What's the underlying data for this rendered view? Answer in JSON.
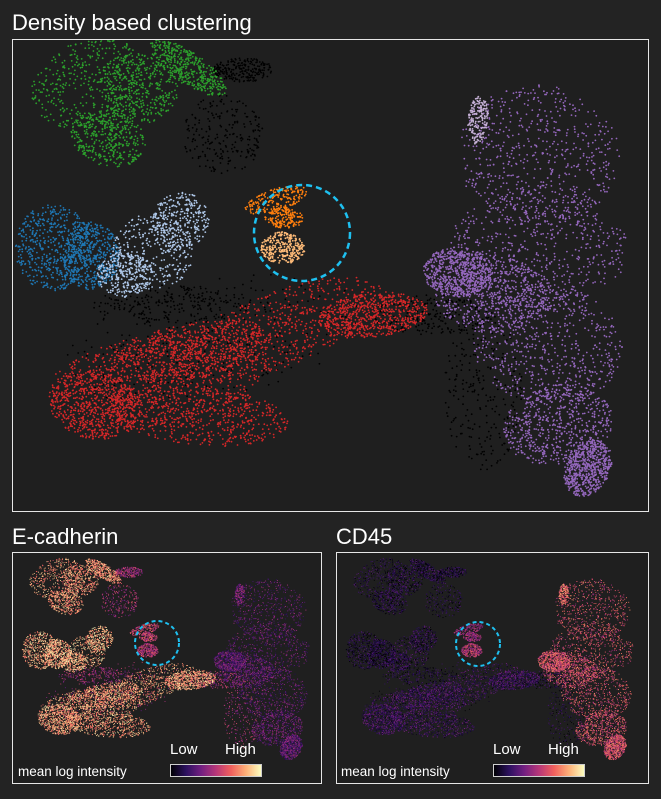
{
  "figure": {
    "panels": [
      {
        "id": "clusters",
        "title": "Density based clustering"
      },
      {
        "id": "ecad",
        "title": "E-cadherin"
      },
      {
        "id": "cd45",
        "title": "CD45"
      }
    ],
    "legend": {
      "caption": "mean log intensity",
      "low_label": "Low",
      "high_label": "High"
    }
  },
  "colors": {
    "background": "#232323",
    "frame": "#e6e6e6",
    "highlight_circle": "#1ec0f0",
    "unassigned": "#000000",
    "green": "#2ca02c",
    "blue": "#1f77b4",
    "light_blue": "#aec7e8",
    "orange": "#ff7f0e",
    "peach": "#ffbb78",
    "red": "#d62728",
    "purple": "#9467bd",
    "pale_lavender": "#c5b0d5"
  },
  "chart_data": [
    {
      "type": "scatter",
      "title": "Density based clustering",
      "xlabel": "",
      "ylabel": "",
      "axes": "hidden",
      "grid": false,
      "legend": "none",
      "series": [
        {
          "color": "#2ca02c"
        },
        {
          "color": "#1f77b4"
        },
        {
          "color": "#aec7e8"
        },
        {
          "color": "#ff7f0e"
        },
        {
          "color": "#ffbb78"
        },
        {
          "color": "#d62728"
        },
        {
          "color": "#9467bd"
        },
        {
          "color": "#c5b0d5"
        },
        {
          "color": "#000000"
        }
      ],
      "annotations": [
        {
          "shape": "dashed-circle",
          "color": "#1ec0f0"
        }
      ]
    },
    {
      "type": "scatter",
      "title": "E-cadherin",
      "color_scale": "magma",
      "colorbar": {
        "caption": "mean log intensity",
        "low": "Low",
        "high": "High",
        "placement": "bottom"
      },
      "annotations": [
        {
          "shape": "dashed-circle",
          "color": "#1ec0f0"
        }
      ]
    },
    {
      "type": "scatter",
      "title": "CD45",
      "color_scale": "magma",
      "colorbar": {
        "caption": "mean log intensity",
        "low": "Low",
        "high": "High",
        "placement": "bottom"
      },
      "annotations": [
        {
          "shape": "dashed-circle",
          "color": "#1ec0f0"
        }
      ]
    }
  ]
}
